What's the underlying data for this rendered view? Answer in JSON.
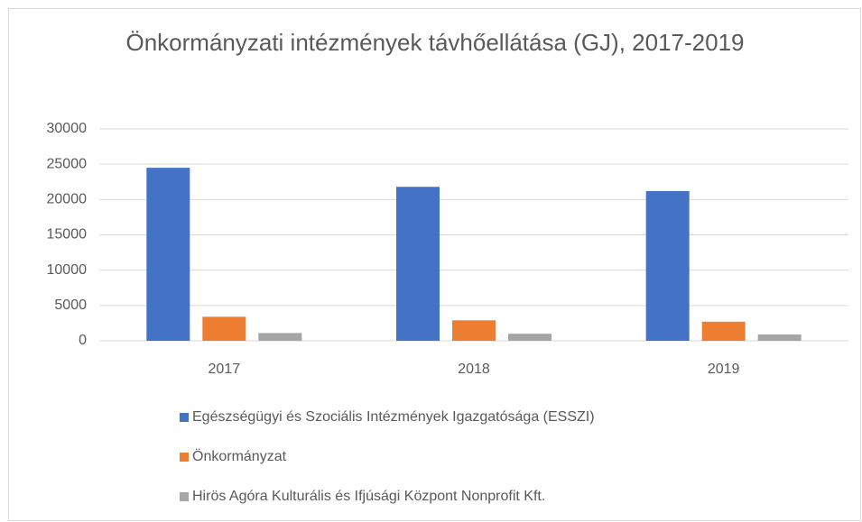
{
  "chart_data": {
    "type": "bar",
    "title": "Önkormányzati intézmények távhőellátása (GJ), 2017-2019",
    "categories": [
      "2017",
      "2018",
      "2019"
    ],
    "series": [
      {
        "name": "Egészségügyi és Szociális Intézmények Igazgatósága (ESSZI)",
        "color": "#4472c4",
        "values": [
          24500,
          21800,
          21200
        ]
      },
      {
        "name": "Önkormányzat",
        "color": "#ed7d31",
        "values": [
          3400,
          2900,
          2700
        ]
      },
      {
        "name": "Hirös Agóra Kulturális és Ifjúsági Központ Nonprofit Kft.",
        "color": "#a5a5a5",
        "values": [
          1100,
          1000,
          900
        ]
      }
    ],
    "ylim": [
      0,
      30000
    ],
    "yticks": [
      0,
      5000,
      10000,
      15000,
      20000,
      25000,
      30000
    ],
    "grid": true,
    "legend": "bottom"
  }
}
